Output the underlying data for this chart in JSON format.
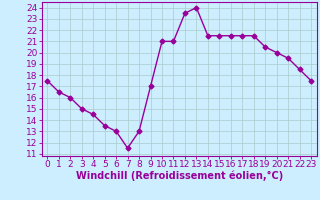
{
  "x": [
    0,
    1,
    2,
    3,
    4,
    5,
    6,
    7,
    8,
    9,
    10,
    11,
    12,
    13,
    14,
    15,
    16,
    17,
    18,
    19,
    20,
    21,
    22,
    23
  ],
  "y": [
    17.5,
    16.5,
    16.0,
    15.0,
    14.5,
    13.5,
    13.0,
    11.5,
    13.0,
    17.0,
    21.0,
    21.0,
    23.5,
    24.0,
    21.5,
    21.5,
    21.5,
    21.5,
    21.5,
    20.5,
    20.0,
    19.5,
    18.5,
    17.5
  ],
  "line_color": "#990099",
  "marker": "D",
  "marker_size": 2.5,
  "background_color": "#cceeff",
  "grid_color": "#aacccc",
  "xlabel": "Windchill (Refroidissement éolien,°C)",
  "xlabel_fontsize": 7,
  "xtick_labels": [
    "0",
    "1",
    "2",
    "3",
    "4",
    "5",
    "6",
    "7",
    "8",
    "9",
    "10",
    "11",
    "12",
    "13",
    "14",
    "15",
    "16",
    "17",
    "18",
    "19",
    "20",
    "21",
    "22",
    "23"
  ],
  "ytick_min": 11,
  "ytick_max": 24,
  "ytick_step": 1,
  "ylim": [
    10.8,
    24.5
  ],
  "xlim": [
    -0.5,
    23.5
  ],
  "tick_fontsize": 6.5,
  "line_width": 1.0,
  "axis_color": "#990099",
  "spine_color": "#990099"
}
